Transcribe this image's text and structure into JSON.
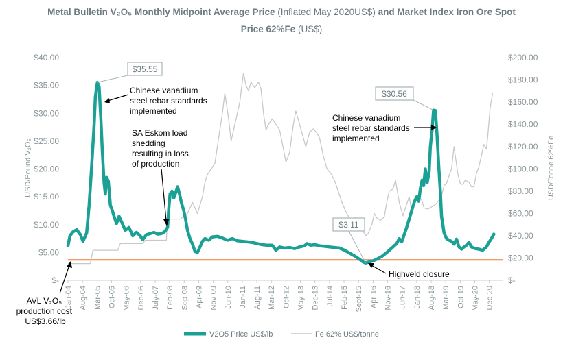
{
  "colors": {
    "v2o5": "#1aa094",
    "fe": "#c8c8c8",
    "cost_line": "#ea7a3c",
    "title": "#6b7b7f",
    "axis_text": "#8a9599",
    "callout_border": "#a6b3b6"
  },
  "chart_data": {
    "type": "line",
    "title": "Metal Bulletin V₂O₅ Monthly Midpoint Average Price",
    "title_note": " (Inflated May 2020US$)",
    "title_tail": " and Market Index Iron Ore Spot",
    "title_line2": "Price 62%Fe",
    "title_line2_note": " (US$)",
    "ylabel_left": "USD/Pound V₂O₅",
    "ylabel_right": "USD/Tonne 62%Fe",
    "ylim_left": [
      0,
      40
    ],
    "ylim_right": [
      0,
      200
    ],
    "left_ticks": [
      "$-",
      "$5.00",
      "$10.00",
      "$15.00",
      "$20.00",
      "$25.00",
      "$30.00",
      "$35.00",
      "$40.00"
    ],
    "right_ticks": [
      "$-",
      "$20.00",
      "$40.00",
      "$60.00",
      "$80.00",
      "$100.00",
      "$120.00",
      "$140.00",
      "$160.00",
      "$180.00",
      "$200.00"
    ],
    "x_tick_labels": [
      "Jan-04",
      "Aug-04",
      "Mar-05",
      "Oct-05",
      "May-06",
      "Dec-06",
      "July-07",
      "Feb-08",
      "Sep-08",
      "Apr-09",
      "Nov-09",
      "Jun-10",
      "Jan-11",
      "Aug-11",
      "Mar-12",
      "Oct-12",
      "May-13",
      "Dec-13",
      "Jul-14",
      "Feb-15",
      "Sept-15",
      "Apr-16",
      "Nov-16",
      "Jun-17",
      "Jan-18",
      "Aug-18",
      "Mar-19",
      "Oct-19",
      "May-20",
      "Dec-20"
    ],
    "legend_position": "bottom",
    "grid": false,
    "series": [
      {
        "name": "V2O5 Price US$/lb",
        "axis": "left",
        "points": [
          [
            2004.0,
            6.2
          ],
          [
            2004.08,
            8.0
          ],
          [
            2004.2,
            8.7
          ],
          [
            2004.35,
            9.1
          ],
          [
            2004.5,
            8.2
          ],
          [
            2004.6,
            7.0
          ],
          [
            2004.75,
            8.5
          ],
          [
            2004.85,
            13.5
          ],
          [
            2004.95,
            20.5
          ],
          [
            2005.05,
            28.0
          ],
          [
            2005.1,
            33.0
          ],
          [
            2005.18,
            35.55
          ],
          [
            2005.25,
            34.8
          ],
          [
            2005.32,
            29.0
          ],
          [
            2005.38,
            23.0
          ],
          [
            2005.45,
            17.5
          ],
          [
            2005.5,
            15.5
          ],
          [
            2005.55,
            18.5
          ],
          [
            2005.62,
            17.8
          ],
          [
            2005.7,
            13.5
          ],
          [
            2005.78,
            12.5
          ],
          [
            2005.85,
            11.5
          ],
          [
            2005.95,
            10.2
          ],
          [
            2006.05,
            11.5
          ],
          [
            2006.15,
            10.5
          ],
          [
            2006.3,
            9.0
          ],
          [
            2006.45,
            9.5
          ],
          [
            2006.6,
            8.0
          ],
          [
            2006.75,
            8.6
          ],
          [
            2006.9,
            8.0
          ],
          [
            2007.0,
            7.3
          ],
          [
            2007.15,
            8.2
          ],
          [
            2007.3,
            8.4
          ],
          [
            2007.45,
            8.6
          ],
          [
            2007.6,
            8.3
          ],
          [
            2007.75,
            8.4
          ],
          [
            2007.88,
            8.7
          ],
          [
            2008.0,
            9.5
          ],
          [
            2008.05,
            13.0
          ],
          [
            2008.1,
            15.5
          ],
          [
            2008.18,
            16.0
          ],
          [
            2008.25,
            14.8
          ],
          [
            2008.33,
            15.8
          ],
          [
            2008.4,
            16.8
          ],
          [
            2008.48,
            15.5
          ],
          [
            2008.55,
            14.0
          ],
          [
            2008.65,
            12.5
          ],
          [
            2008.72,
            11.0
          ],
          [
            2008.8,
            9.0
          ],
          [
            2008.9,
            7.5
          ],
          [
            2009.0,
            6.5
          ],
          [
            2009.1,
            5.2
          ],
          [
            2009.2,
            5.0
          ],
          [
            2009.3,
            6.0
          ],
          [
            2009.4,
            7.0
          ],
          [
            2009.5,
            7.5
          ],
          [
            2009.65,
            7.2
          ],
          [
            2009.8,
            7.8
          ],
          [
            2010.0,
            7.9
          ],
          [
            2010.2,
            7.6
          ],
          [
            2010.4,
            7.2
          ],
          [
            2010.6,
            7.5
          ],
          [
            2010.8,
            7.1
          ],
          [
            2011.0,
            7.0
          ],
          [
            2011.2,
            6.9
          ],
          [
            2011.4,
            6.8
          ],
          [
            2011.6,
            6.6
          ],
          [
            2011.8,
            6.4
          ],
          [
            2012.0,
            6.3
          ],
          [
            2012.2,
            6.3
          ],
          [
            2012.35,
            5.4
          ],
          [
            2012.5,
            6.0
          ],
          [
            2012.7,
            5.8
          ],
          [
            2012.9,
            5.9
          ],
          [
            2013.1,
            5.7
          ],
          [
            2013.3,
            6.0
          ],
          [
            2013.5,
            6.2
          ],
          [
            2013.6,
            6.6
          ],
          [
            2013.75,
            6.3
          ],
          [
            2013.9,
            6.4
          ],
          [
            2014.1,
            6.2
          ],
          [
            2014.3,
            6.1
          ],
          [
            2014.5,
            6.0
          ],
          [
            2014.7,
            5.9
          ],
          [
            2014.9,
            5.8
          ],
          [
            2015.1,
            5.4
          ],
          [
            2015.3,
            4.9
          ],
          [
            2015.5,
            4.4
          ],
          [
            2015.7,
            3.8
          ],
          [
            2015.85,
            3.3
          ],
          [
            2015.95,
            3.11
          ],
          [
            2016.1,
            3.3
          ],
          [
            2016.25,
            3.5
          ],
          [
            2016.4,
            3.8
          ],
          [
            2016.6,
            4.3
          ],
          [
            2016.8,
            5.0
          ],
          [
            2017.0,
            5.8
          ],
          [
            2017.1,
            6.2
          ],
          [
            2017.2,
            6.6
          ],
          [
            2017.3,
            7.5
          ],
          [
            2017.4,
            6.9
          ],
          [
            2017.5,
            8.2
          ],
          [
            2017.6,
            9.5
          ],
          [
            2017.7,
            11.0
          ],
          [
            2017.8,
            12.5
          ],
          [
            2017.9,
            14.0
          ],
          [
            2018.0,
            15.0
          ],
          [
            2018.08,
            14.2
          ],
          [
            2018.15,
            16.5
          ],
          [
            2018.22,
            18.0
          ],
          [
            2018.28,
            17.0
          ],
          [
            2018.35,
            20.0
          ],
          [
            2018.42,
            17.5
          ],
          [
            2018.5,
            19.5
          ],
          [
            2018.55,
            24.0
          ],
          [
            2018.62,
            27.0
          ],
          [
            2018.68,
            30.56
          ],
          [
            2018.75,
            30.5
          ],
          [
            2018.82,
            26.0
          ],
          [
            2018.88,
            21.0
          ],
          [
            2018.95,
            16.0
          ],
          [
            2019.0,
            11.5
          ],
          [
            2019.1,
            8.5
          ],
          [
            2019.2,
            7.5
          ],
          [
            2019.3,
            7.2
          ],
          [
            2019.4,
            7.0
          ],
          [
            2019.5,
            6.5
          ],
          [
            2019.6,
            7.4
          ],
          [
            2019.7,
            6.0
          ],
          [
            2019.8,
            5.6
          ],
          [
            2019.9,
            6.0
          ],
          [
            2020.0,
            6.3
          ],
          [
            2020.1,
            6.8
          ],
          [
            2020.2,
            6.0
          ],
          [
            2020.35,
            5.7
          ],
          [
            2020.5,
            5.6
          ],
          [
            2020.65,
            5.4
          ],
          [
            2020.8,
            6.0
          ],
          [
            2020.9,
            6.8
          ],
          [
            2021.0,
            7.5
          ],
          [
            2021.1,
            8.3
          ]
        ]
      },
      {
        "name": "Fe 62% US$/tonne",
        "axis": "right",
        "points": [
          [
            2004.0,
            15
          ],
          [
            2004.9,
            15
          ],
          [
            2005.0,
            27
          ],
          [
            2006.0,
            27
          ],
          [
            2006.1,
            33
          ],
          [
            2007.0,
            33
          ],
          [
            2007.1,
            36
          ],
          [
            2007.95,
            36
          ],
          [
            2008.0,
            55
          ],
          [
            2008.5,
            55
          ],
          [
            2008.8,
            60
          ],
          [
            2009.0,
            70
          ],
          [
            2009.2,
            60
          ],
          [
            2009.4,
            75
          ],
          [
            2009.5,
            88
          ],
          [
            2009.6,
            95
          ],
          [
            2009.75,
            100
          ],
          [
            2009.9,
            105
          ],
          [
            2010.05,
            128
          ],
          [
            2010.2,
            150
          ],
          [
            2010.3,
            168
          ],
          [
            2010.45,
            145
          ],
          [
            2010.55,
            125
          ],
          [
            2010.65,
            135
          ],
          [
            2010.8,
            150
          ],
          [
            2010.9,
            160
          ],
          [
            2011.0,
            178
          ],
          [
            2011.05,
            186
          ],
          [
            2011.15,
            175
          ],
          [
            2011.25,
            170
          ],
          [
            2011.35,
            178
          ],
          [
            2011.5,
            173
          ],
          [
            2011.65,
            178
          ],
          [
            2011.75,
            172
          ],
          [
            2011.85,
            150
          ],
          [
            2011.95,
            135
          ],
          [
            2012.05,
            140
          ],
          [
            2012.2,
            145
          ],
          [
            2012.35,
            140
          ],
          [
            2012.5,
            135
          ],
          [
            2012.65,
            118
          ],
          [
            2012.75,
            106
          ],
          [
            2012.9,
            115
          ],
          [
            2013.05,
            140
          ],
          [
            2013.15,
            152
          ],
          [
            2013.3,
            140
          ],
          [
            2013.45,
            128
          ],
          [
            2013.55,
            120
          ],
          [
            2013.7,
            133
          ],
          [
            2013.85,
            136
          ],
          [
            2014.0,
            132
          ],
          [
            2014.1,
            128
          ],
          [
            2014.25,
            112
          ],
          [
            2014.4,
            100
          ],
          [
            2014.55,
            96
          ],
          [
            2014.7,
            90
          ],
          [
            2014.85,
            80
          ],
          [
            2015.0,
            70
          ],
          [
            2015.15,
            62
          ],
          [
            2015.3,
            56
          ],
          [
            2015.45,
            52
          ],
          [
            2015.55,
            57
          ],
          [
            2015.7,
            50
          ],
          [
            2015.85,
            44
          ],
          [
            2015.95,
            40
          ],
          [
            2016.05,
            42
          ],
          [
            2016.2,
            50
          ],
          [
            2016.3,
            60
          ],
          [
            2016.4,
            56
          ],
          [
            2016.55,
            54
          ],
          [
            2016.7,
            57
          ],
          [
            2016.8,
            70
          ],
          [
            2016.9,
            80
          ],
          [
            2017.05,
            82
          ],
          [
            2017.15,
            90
          ],
          [
            2017.3,
            70
          ],
          [
            2017.45,
            58
          ],
          [
            2017.55,
            65
          ],
          [
            2017.7,
            75
          ],
          [
            2017.8,
            62
          ],
          [
            2017.95,
            70
          ],
          [
            2018.05,
            76
          ],
          [
            2018.2,
            72
          ],
          [
            2018.3,
            65
          ],
          [
            2018.45,
            64
          ],
          [
            2018.6,
            66
          ],
          [
            2018.75,
            68
          ],
          [
            2018.9,
            72
          ],
          [
            2019.0,
            76
          ],
          [
            2019.1,
            85
          ],
          [
            2019.2,
            87
          ],
          [
            2019.3,
            94
          ],
          [
            2019.4,
            100
          ],
          [
            2019.5,
            120
          ],
          [
            2019.55,
            112
          ],
          [
            2019.65,
            96
          ],
          [
            2019.75,
            87
          ],
          [
            2019.85,
            86
          ],
          [
            2019.95,
            90
          ],
          [
            2020.1,
            88
          ],
          [
            2020.2,
            84
          ],
          [
            2020.3,
            84
          ],
          [
            2020.4,
            96
          ],
          [
            2020.5,
            102
          ],
          [
            2020.6,
            112
          ],
          [
            2020.7,
            122
          ],
          [
            2020.8,
            118
          ],
          [
            2020.85,
            128
          ],
          [
            2020.95,
            155
          ],
          [
            2021.05,
            168
          ]
        ]
      },
      {
        "name": "AVL V₂O₅ production cost",
        "axis": "left",
        "style": "horizontal",
        "value": 3.66
      }
    ],
    "callouts": [
      {
        "label": "$35.55",
        "x": 2005.18,
        "y": 35.55
      },
      {
        "label": "$30.56",
        "x": 2018.68,
        "y": 30.56
      },
      {
        "label": "$3.11",
        "x": 2015.95,
        "y": 3.11
      }
    ],
    "annotations": {
      "rebar_2005": [
        "Chinese vanadium",
        "steel rebar standards",
        "implemented"
      ],
      "eskom": [
        "SA Eskom load",
        "shedding",
        "resulting in loss",
        "of production"
      ],
      "rebar_2018": [
        "Chinese vanadium",
        "steel rebar standards",
        "implemented"
      ],
      "highveld": "Highveld closure",
      "avl_cost_lines": [
        "AVL V₂O₅",
        "production cost",
        "US$3.66/lb"
      ]
    }
  }
}
